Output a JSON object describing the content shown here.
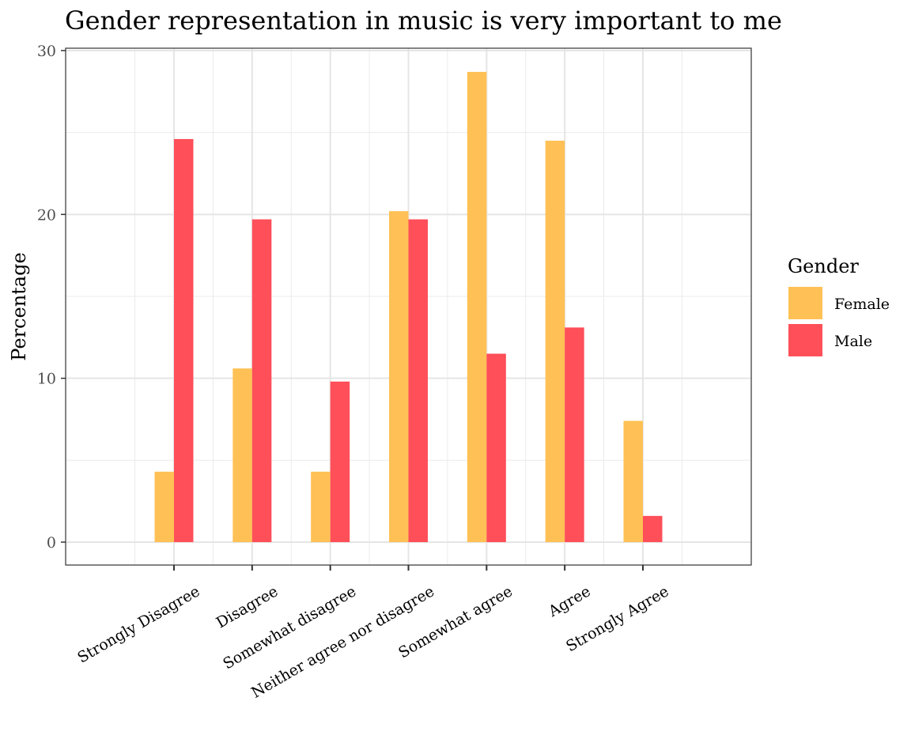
{
  "chart_data": {
    "type": "bar",
    "title": "Gender representation in music is very important to me",
    "xlabel": "",
    "ylabel": "Percentage",
    "categories": [
      "Strongly Disagree",
      "Disagree",
      "Somewhat disagree",
      "Neither agree nor disagree",
      "Somewhat agree",
      "Agree",
      "Strongly Agree"
    ],
    "series": [
      {
        "name": "Female",
        "color": "#FFC155",
        "values": [
          4.3,
          10.6,
          4.3,
          20.2,
          28.7,
          24.5,
          7.4
        ]
      },
      {
        "name": "Male",
        "color": "#FF4F59",
        "values": [
          24.6,
          19.7,
          9.8,
          19.7,
          11.5,
          13.1,
          1.6
        ]
      }
    ],
    "ylim": [
      0,
      30
    ],
    "yticks": [
      0,
      10,
      20,
      30
    ],
    "grid": true,
    "legend": {
      "title": "Gender",
      "position": "right"
    }
  }
}
